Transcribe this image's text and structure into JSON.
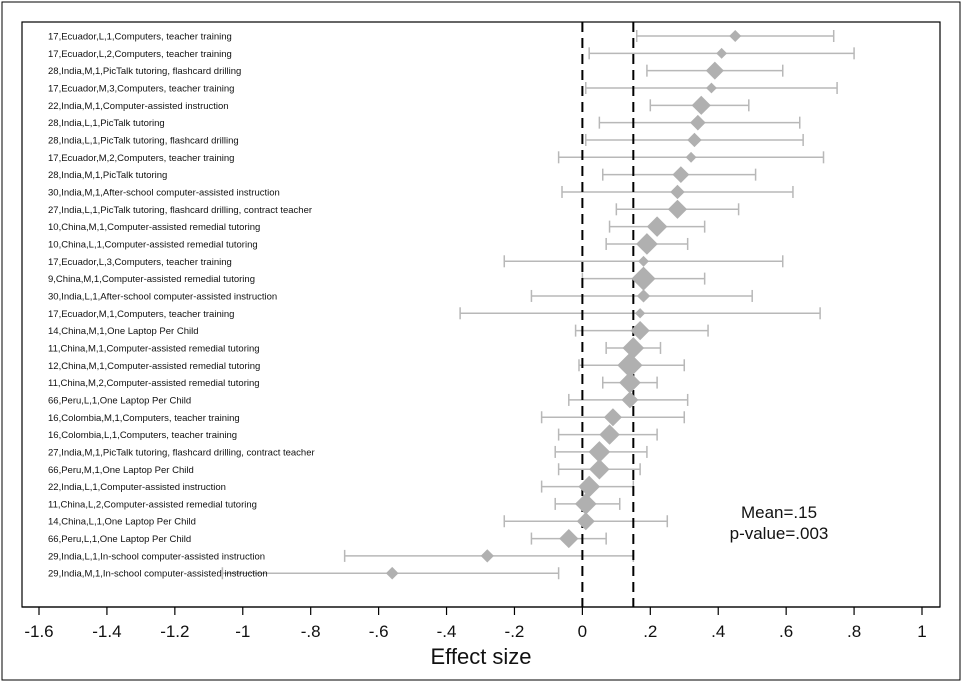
{
  "chart_data": {
    "type": "forest",
    "xlabel": "Effect size",
    "xlim": [
      -1.6,
      1.0
    ],
    "xticks": [
      -1.6,
      -1.4,
      -1.2,
      -1.0,
      -0.8,
      -0.6,
      -0.4,
      -0.2,
      0,
      0.2,
      0.4,
      0.6,
      0.8,
      1.0
    ],
    "xtick_labels": [
      "-1.6",
      "-1.4",
      "-1.2",
      "-1",
      "-.8",
      "-.6",
      "-.4",
      "-.2",
      "0",
      ".2",
      ".4",
      ".6",
      ".8",
      "1"
    ],
    "reference_lines": [
      0,
      0.15
    ],
    "annotation": {
      "mean": "Mean=.15",
      "p_value": "p-value=.003"
    },
    "colors": {
      "marker": "#b0b0b0",
      "ci": "#b8b8b8",
      "refline": "#000000"
    },
    "studies": [
      {
        "label": "17,Ecuador,L,1,Computers, teacher training",
        "est": 0.45,
        "lo": 0.16,
        "hi": 0.74,
        "weight": 0.5
      },
      {
        "label": "17,Ecuador,L,2,Computers, teacher training",
        "est": 0.41,
        "lo": 0.02,
        "hi": 0.8,
        "weight": 0.4
      },
      {
        "label": "28,India,M,1,PicTalk tutoring, flashcard drilling",
        "est": 0.39,
        "lo": 0.19,
        "hi": 0.59,
        "weight": 1.0
      },
      {
        "label": "17,Ecuador,M,3,Computers, teacher training",
        "est": 0.38,
        "lo": 0.01,
        "hi": 0.75,
        "weight": 0.4
      },
      {
        "label": "22,India,M,1,Computer-assisted instruction",
        "est": 0.35,
        "lo": 0.2,
        "hi": 0.49,
        "weight": 1.1
      },
      {
        "label": "28,India,L,1,PicTalk tutoring",
        "est": 0.34,
        "lo": 0.05,
        "hi": 0.64,
        "weight": 0.8
      },
      {
        "label": "28,India,L,1,PicTalk tutoring, flashcard drilling",
        "est": 0.33,
        "lo": 0.01,
        "hi": 0.65,
        "weight": 0.7
      },
      {
        "label": "17,Ecuador,M,2,Computers, teacher training",
        "est": 0.32,
        "lo": -0.07,
        "hi": 0.71,
        "weight": 0.4
      },
      {
        "label": "28,India,M,1,PicTalk tutoring",
        "est": 0.29,
        "lo": 0.06,
        "hi": 0.51,
        "weight": 0.9
      },
      {
        "label": "30,India,M,1,After-school computer-assisted instruction",
        "est": 0.28,
        "lo": -0.06,
        "hi": 0.62,
        "weight": 0.7
      },
      {
        "label": "27,India,L,1,PicTalk tutoring, flashcard drilling, contract teacher",
        "est": 0.28,
        "lo": 0.1,
        "hi": 0.46,
        "weight": 1.1
      },
      {
        "label": "10,China,M,1,Computer-assisted remedial tutoring",
        "est": 0.22,
        "lo": 0.08,
        "hi": 0.36,
        "weight": 1.2
      },
      {
        "label": "10,China,L,1,Computer-assisted remedial tutoring",
        "est": 0.19,
        "lo": 0.07,
        "hi": 0.31,
        "weight": 1.3
      },
      {
        "label": "17,Ecuador,L,3,Computers, teacher training",
        "est": 0.18,
        "lo": -0.23,
        "hi": 0.59,
        "weight": 0.4
      },
      {
        "label": "9,China,M,1,Computer-assisted remedial tutoring",
        "est": 0.18,
        "lo": 0.0,
        "hi": 0.36,
        "weight": 1.5
      },
      {
        "label": "30,India,L,1,After-school computer-assisted instruction",
        "est": 0.18,
        "lo": -0.15,
        "hi": 0.5,
        "weight": 0.6
      },
      {
        "label": "17,Ecuador,M,1,Computers, teacher training",
        "est": 0.17,
        "lo": -0.36,
        "hi": 0.7,
        "weight": 0.35
      },
      {
        "label": "14,China,M,1,One Laptop Per Child",
        "est": 0.17,
        "lo": -0.02,
        "hi": 0.37,
        "weight": 1.1
      },
      {
        "label": "11,China,M,1,Computer-assisted remedial tutoring",
        "est": 0.15,
        "lo": 0.07,
        "hi": 0.23,
        "weight": 1.3
      },
      {
        "label": "12,China,M,1,Computer-assisted remedial tutoring",
        "est": 0.14,
        "lo": -0.01,
        "hi": 0.3,
        "weight": 1.6
      },
      {
        "label": "11,China,M,2,Computer-assisted remedial tutoring",
        "est": 0.14,
        "lo": 0.06,
        "hi": 0.22,
        "weight": 1.3
      },
      {
        "label": "66,Peru,L,1,One Laptop Per Child",
        "est": 0.14,
        "lo": -0.04,
        "hi": 0.31,
        "weight": 0.9
      },
      {
        "label": "16,Colombia,M,1,Computers, teacher training",
        "est": 0.09,
        "lo": -0.12,
        "hi": 0.3,
        "weight": 1.0
      },
      {
        "label": "16,Colombia,L,1,Computers, teacher training",
        "est": 0.08,
        "lo": -0.07,
        "hi": 0.22,
        "weight": 1.2
      },
      {
        "label": "27,India,M,1,PicTalk tutoring, flashcard drilling, contract teacher",
        "est": 0.05,
        "lo": -0.08,
        "hi": 0.19,
        "weight": 1.3
      },
      {
        "label": "66,Peru,M,1,One Laptop Per Child",
        "est": 0.05,
        "lo": -0.07,
        "hi": 0.17,
        "weight": 1.2
      },
      {
        "label": "22,India,L,1,Computer-assisted instruction",
        "est": 0.02,
        "lo": -0.12,
        "hi": 0.15,
        "weight": 1.3
      },
      {
        "label": "11,China,L,2,Computer-assisted remedial tutoring",
        "est": 0.01,
        "lo": -0.08,
        "hi": 0.11,
        "weight": 1.3
      },
      {
        "label": "14,China,L,1,One Laptop Per Child",
        "est": 0.01,
        "lo": -0.23,
        "hi": 0.25,
        "weight": 1.0
      },
      {
        "label": "66,Peru,L,1,One Laptop Per Child",
        "est": -0.04,
        "lo": -0.15,
        "hi": 0.07,
        "weight": 1.1
      },
      {
        "label": "29,India,L,1,In-school computer-assisted instruction",
        "est": -0.28,
        "lo": -0.7,
        "hi": 0.15,
        "weight": 0.6
      },
      {
        "label": "29,India,M,1,In-school computer-assisted instruction",
        "est": -0.56,
        "lo": -1.06,
        "hi": -0.07,
        "weight": 0.55
      }
    ]
  }
}
